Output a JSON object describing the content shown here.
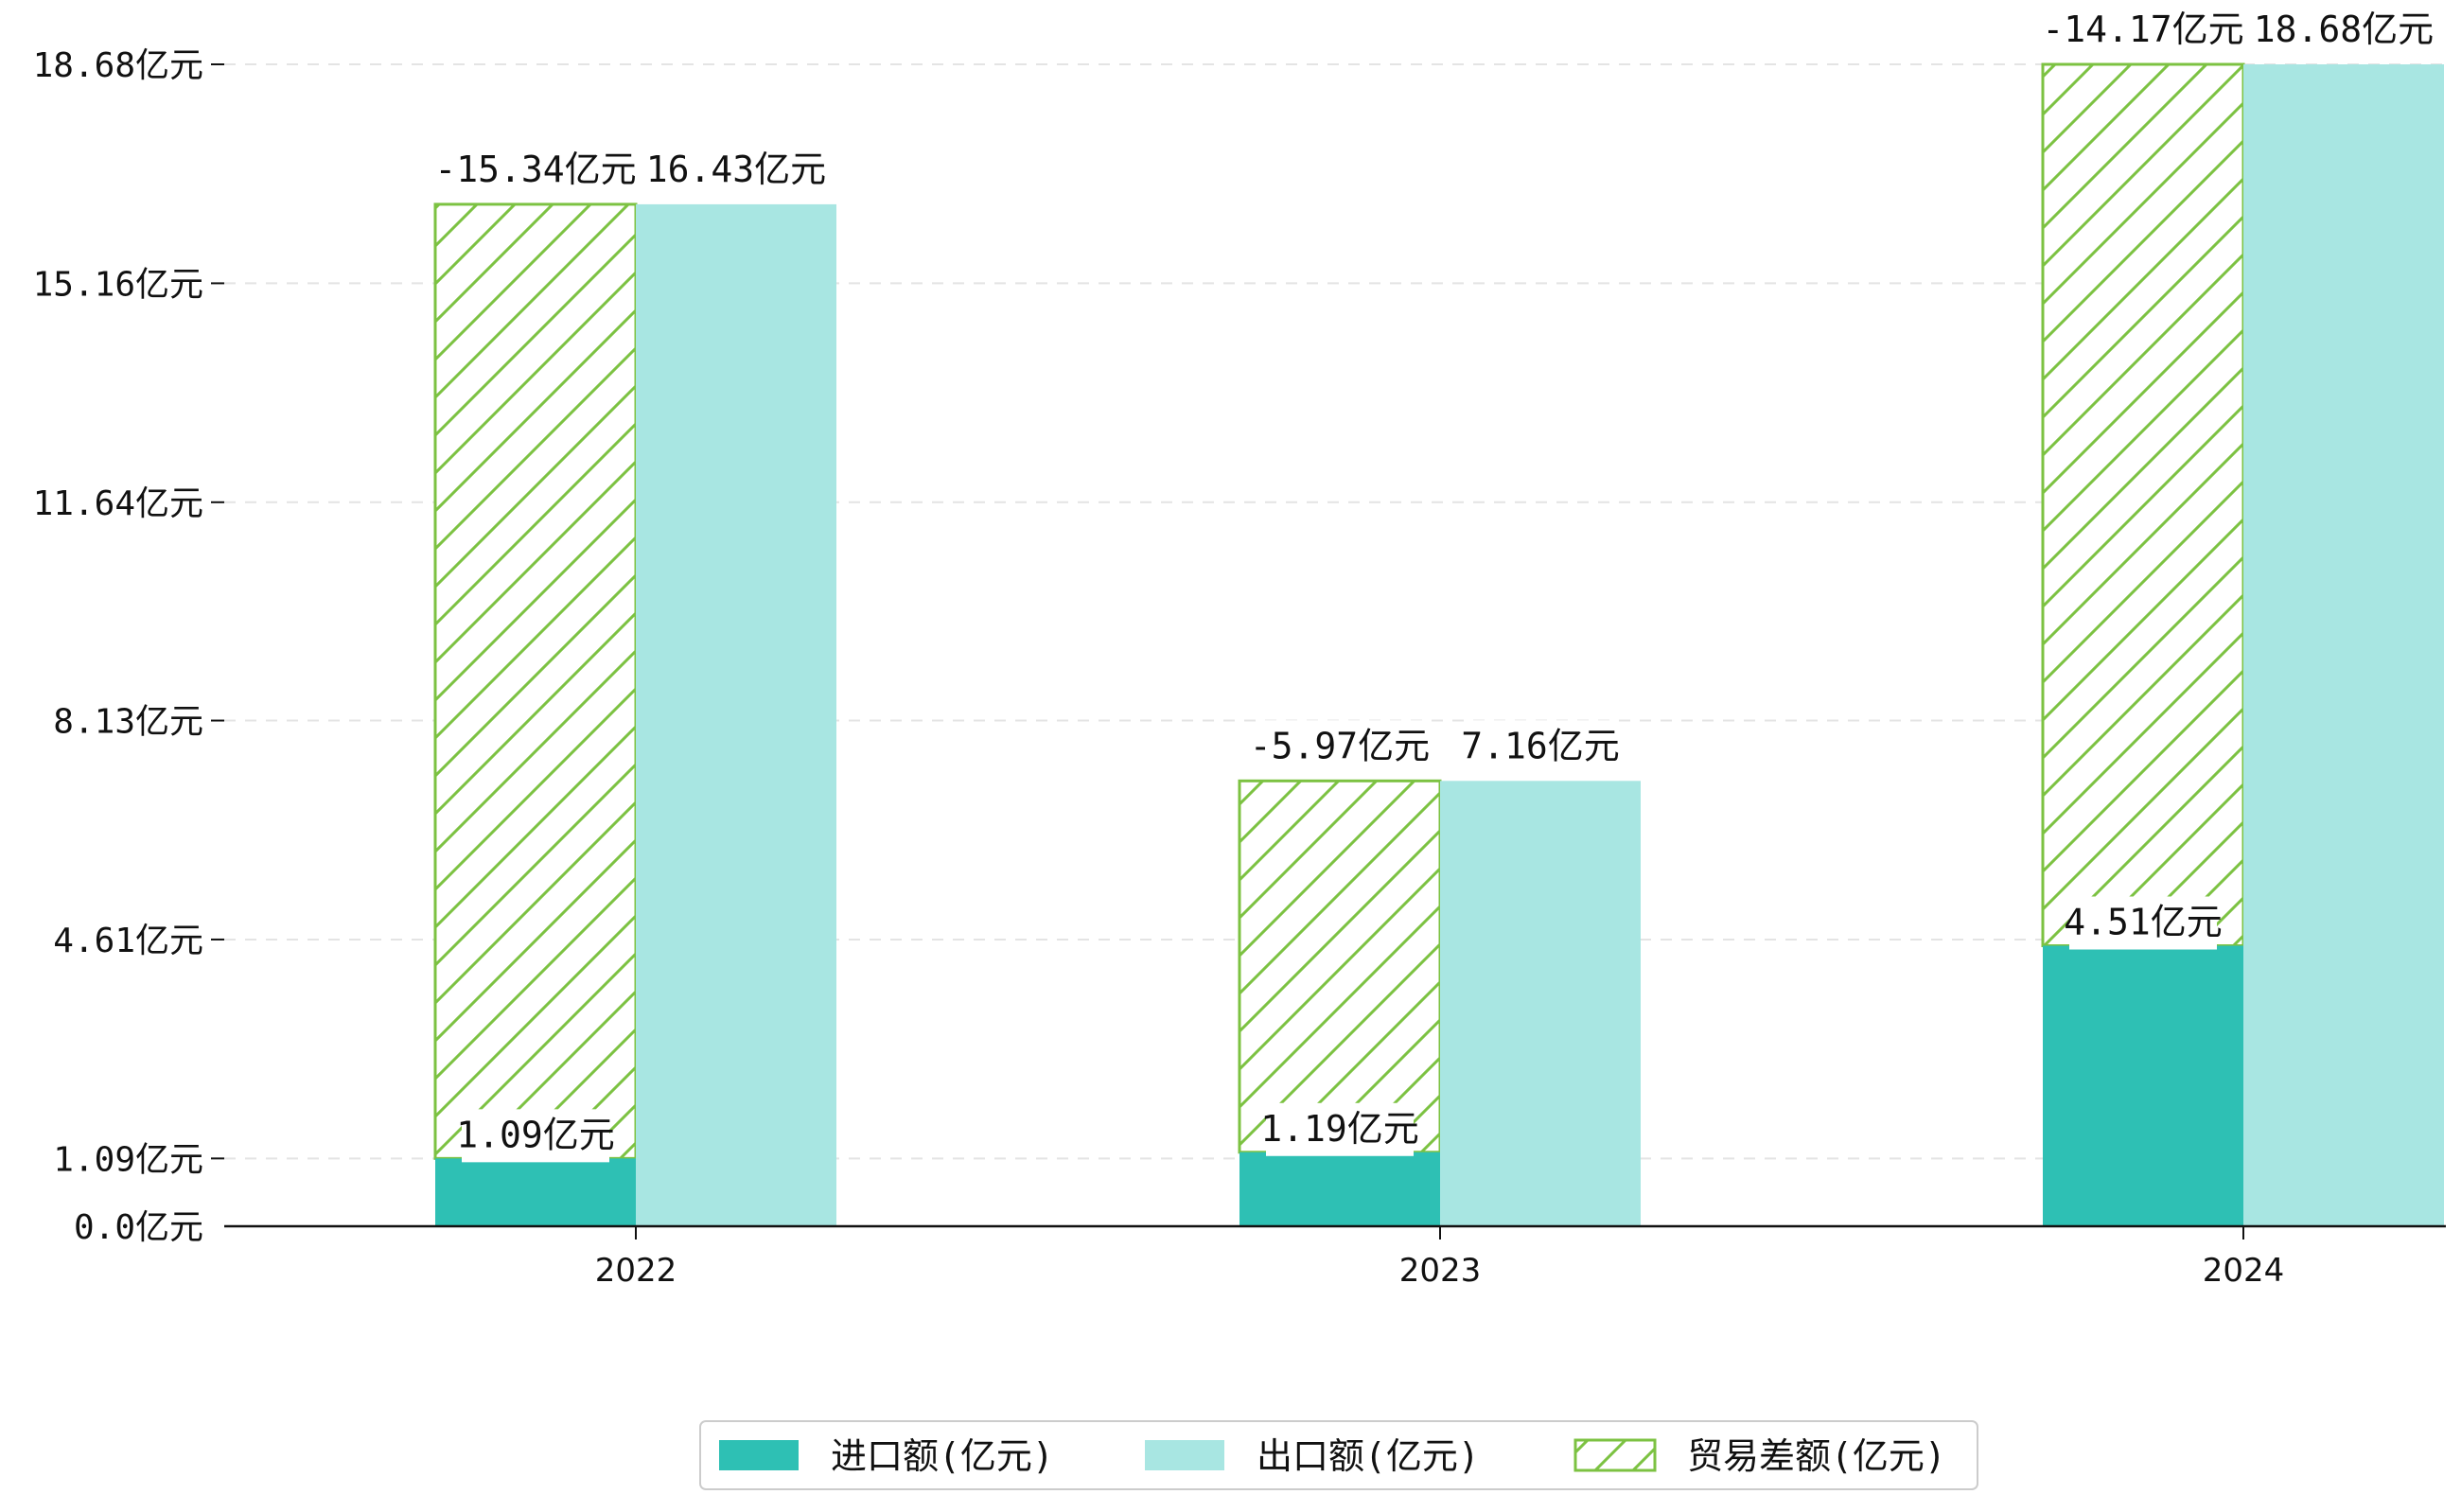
{
  "chart_data": {
    "type": "bar",
    "title": "",
    "xlabel": "",
    "ylabel": "",
    "categories": [
      "2022",
      "2023",
      "2024"
    ],
    "ylim": [
      0,
      18.68
    ],
    "y_ticks": [
      {
        "value": 0,
        "label": "0.0亿元"
      },
      {
        "value": 1.09,
        "label": "1.09亿元"
      },
      {
        "value": 4.61,
        "label": "4.61亿元"
      },
      {
        "value": 8.13,
        "label": "8.13亿元"
      },
      {
        "value": 11.64,
        "label": "11.64亿元"
      },
      {
        "value": 15.16,
        "label": "15.16亿元"
      },
      {
        "value": 18.68,
        "label": "18.68亿元"
      }
    ],
    "grid": true,
    "legend_position": "bottom-center",
    "series": [
      {
        "name": "进口额(亿元)",
        "color": "#2ec0b4",
        "values": [
          1.09,
          1.19,
          4.51
        ],
        "labels": [
          "1.09亿元",
          "1.19亿元",
          "4.51亿元"
        ]
      },
      {
        "name": "出口额(亿元)",
        "color": "#a8e6e2",
        "values": [
          16.43,
          7.16,
          18.68
        ],
        "labels": [
          "16.43亿元",
          "7.16亿元",
          "18.68亿元"
        ]
      },
      {
        "name": "贸易差额(亿元)",
        "color": "#7cc242",
        "pattern": "hatched",
        "values": [
          -15.34,
          -5.97,
          -14.17
        ],
        "labels": [
          "-15.34亿元",
          "-5.97亿元",
          "-14.17亿元"
        ]
      }
    ]
  }
}
